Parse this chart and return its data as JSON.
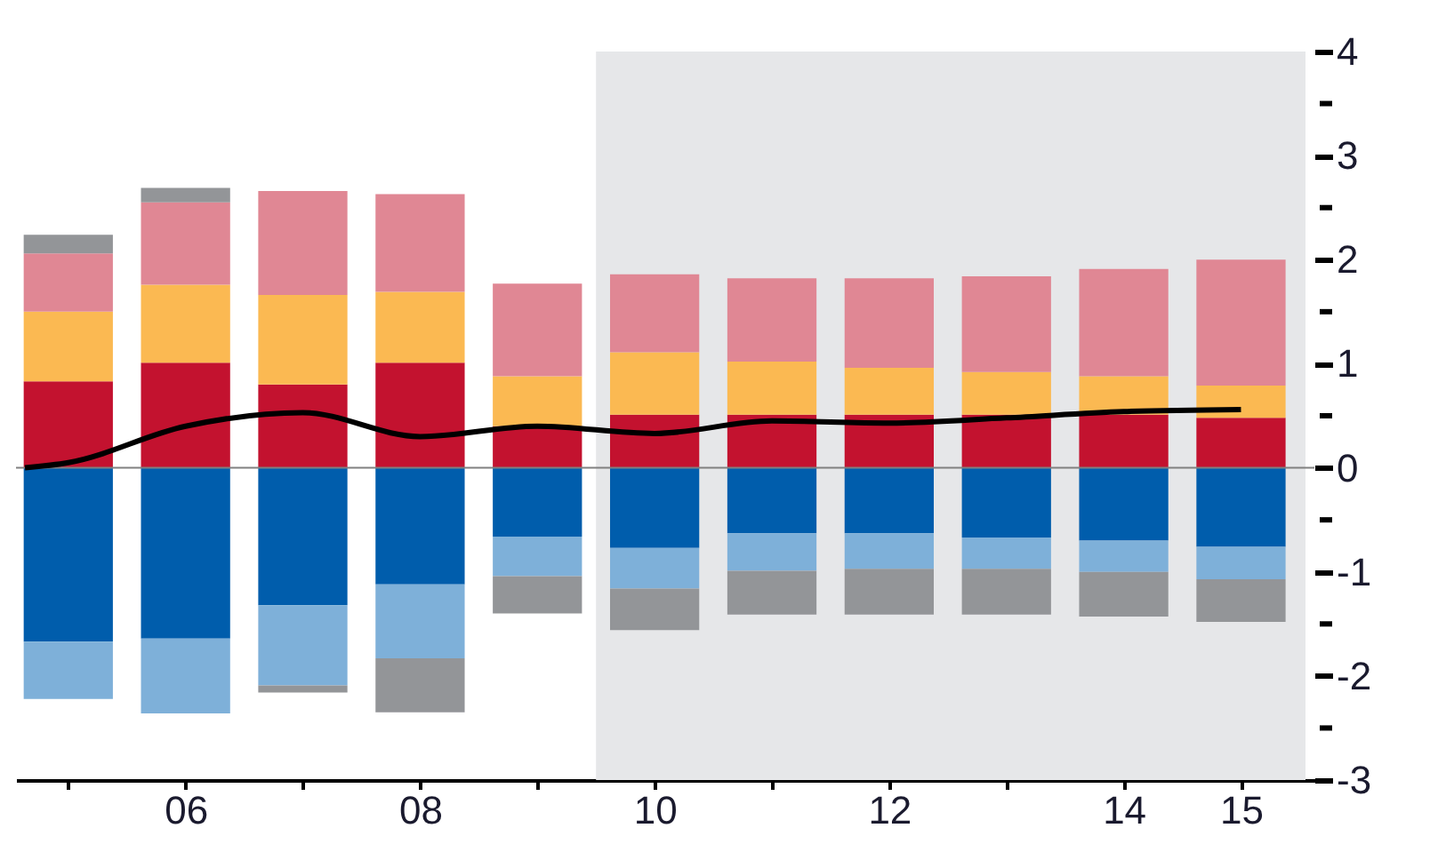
{
  "chart_data": {
    "type": "bar",
    "stacked": true,
    "x": [
      2005,
      2006,
      2007,
      2008,
      2009,
      2010,
      2011,
      2012,
      2013,
      2014,
      2015
    ],
    "series": [
      {
        "color": "#c3122f",
        "values": [
          0.83,
          1.01,
          0.8,
          1.01,
          0.4,
          0.51,
          0.51,
          0.51,
          0.51,
          0.51,
          0.48
        ]
      },
      {
        "color": "#fbb952",
        "values": [
          0.67,
          0.75,
          0.86,
          0.68,
          0.48,
          0.6,
          0.51,
          0.45,
          0.41,
          0.37,
          0.31
        ]
      },
      {
        "color": "#e08794",
        "values": [
          0.56,
          0.79,
          1.0,
          0.94,
          0.89,
          0.75,
          0.8,
          0.86,
          0.92,
          1.03,
          1.21
        ]
      },
      {
        "color": "#005dac",
        "values": [
          -1.67,
          -1.64,
          -1.32,
          -1.12,
          -0.66,
          -0.77,
          -0.63,
          -0.63,
          -0.67,
          -0.7,
          -0.76
        ]
      },
      {
        "color": "#7eb0d9",
        "values": [
          -0.55,
          -0.72,
          -0.77,
          -0.71,
          -0.38,
          -0.39,
          -0.36,
          -0.34,
          -0.3,
          -0.3,
          -0.31
        ]
      },
      {
        "color": "#939598",
        "values": [
          0.18,
          0.14,
          -0.07,
          -0.52,
          -0.36,
          -0.4,
          -0.42,
          -0.44,
          -0.44,
          -0.43,
          -0.41
        ]
      },
      {
        "type": "line",
        "color": "#000000",
        "x": [
          2004.63,
          2005,
          2006,
          2007,
          2008,
          2009,
          2010,
          2011,
          2012,
          2013,
          2014,
          2015
        ],
        "values": [
          0.0,
          0.05,
          0.4,
          0.53,
          0.3,
          0.4,
          0.33,
          0.45,
          0.43,
          0.48,
          0.54,
          0.56
        ]
      }
    ],
    "xlim": [
      2004.63,
      2015.55
    ],
    "xticks": [
      {
        "value": 2005,
        "label": null
      },
      {
        "value": 2006,
        "label": "06"
      },
      {
        "value": 2007,
        "label": null
      },
      {
        "value": 2008,
        "label": "08"
      },
      {
        "value": 2009,
        "label": null
      },
      {
        "value": 2010,
        "label": "10"
      },
      {
        "value": 2011,
        "label": null
      },
      {
        "value": 2012,
        "label": "12"
      },
      {
        "value": 2013,
        "label": null
      },
      {
        "value": 2014,
        "label": "14"
      },
      {
        "value": 2015,
        "label": "15"
      }
    ],
    "ylim": [
      -3,
      4
    ],
    "yticks": [
      -3,
      {
        "value": -2.5,
        "label": null
      },
      -2,
      {
        "value": -1.5,
        "label": null
      },
      -1,
      {
        "value": -0.5,
        "label": null
      },
      0,
      {
        "value": 0.5,
        "label": null
      },
      1,
      {
        "value": 1.5,
        "label": null
      },
      2,
      {
        "value": 2.5,
        "label": null
      },
      3,
      {
        "value": 3.5,
        "label": null
      },
      4
    ],
    "bands": [
      {
        "axis": "x",
        "from": 2009.5,
        "to": 2015.55,
        "color": "#e6e7e9"
      }
    ],
    "ref_lines": [
      {
        "axis": "y",
        "value": 0,
        "color": "#808080"
      }
    ],
    "grid": false,
    "legend": false
  }
}
